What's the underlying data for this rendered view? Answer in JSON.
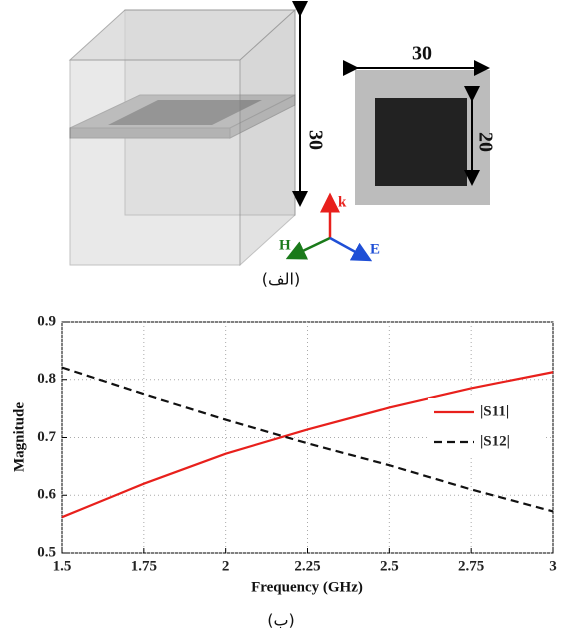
{
  "figure": {
    "box_height": "30",
    "square_width": "30",
    "patch_size": "20",
    "axis_k": "k",
    "axis_h": "H",
    "axis_e": "E",
    "caption_a": "(الف)",
    "caption_b": "(ب)"
  },
  "chart_data": {
    "type": "line",
    "x_label": "Frequency (GHz)",
    "y_label": "Magnitude",
    "x": [
      1.5,
      1.75,
      2,
      2.25,
      2.5,
      2.75,
      3
    ],
    "series": [
      {
        "name": "|S11|",
        "color": "#e8201c",
        "dash": "solid",
        "values": [
          0.562,
          0.62,
          0.672,
          0.714,
          0.752,
          0.785,
          0.813
        ]
      },
      {
        "name": "|S12|",
        "color": "#111111",
        "dash": "dashed",
        "values": [
          0.821,
          0.775,
          0.731,
          0.69,
          0.652,
          0.61,
          0.572
        ]
      }
    ],
    "xlim": [
      1.5,
      3
    ],
    "ylim": [
      0.5,
      0.9
    ],
    "xticks": [
      1.5,
      1.75,
      2,
      2.25,
      2.5,
      2.75,
      3
    ],
    "yticks": [
      0.5,
      0.6,
      0.7,
      0.8,
      0.9
    ],
    "grid": true,
    "legend": "right"
  }
}
